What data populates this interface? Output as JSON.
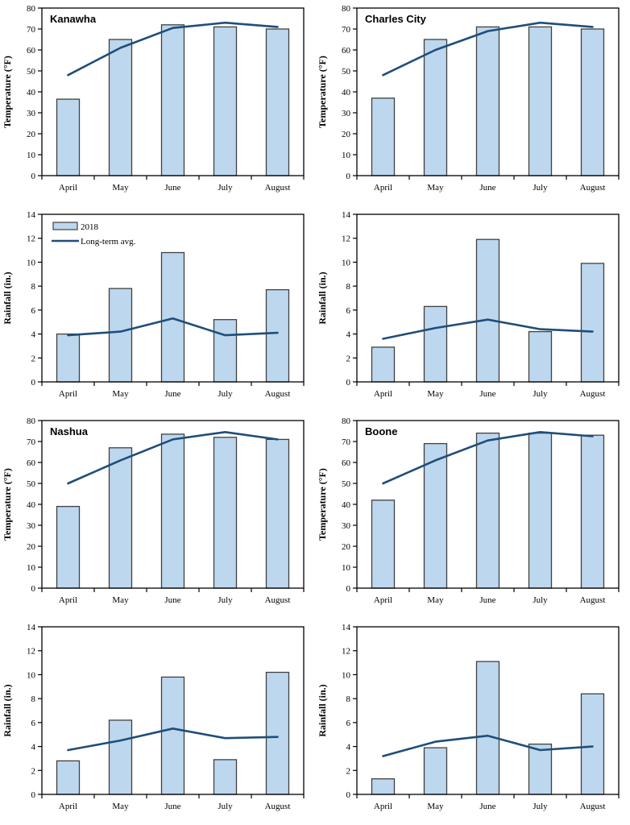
{
  "page": {
    "background": "#ffffff"
  },
  "colors": {
    "bar_fill": "#BDD7EE",
    "bar_border": "#404040",
    "line": "#1F4E79",
    "axis": "#000000"
  },
  "legend": {
    "bar_label": "2018",
    "line_label": "Long-term avg."
  },
  "categories": [
    "April",
    "May",
    "June",
    "July",
    "August"
  ],
  "chart_data": [
    {
      "id": "kanawha-temperature",
      "type": "bar",
      "title": "Kanawha",
      "xlabel": "",
      "ylabel": "Temperature (°F)",
      "ylim": [
        0,
        80
      ],
      "ytick": 10,
      "grid": false,
      "legend": false,
      "categories": [
        "April",
        "May",
        "June",
        "July",
        "August"
      ],
      "series": [
        {
          "name": "2018",
          "type": "bar",
          "values": [
            36.5,
            65,
            72,
            71,
            70
          ]
        },
        {
          "name": "Long-term avg.",
          "type": "line",
          "values": [
            48,
            61,
            70.5,
            73,
            71
          ]
        }
      ]
    },
    {
      "id": "charles-city-temperature",
      "type": "bar",
      "title": "Charles City",
      "xlabel": "",
      "ylabel": "Temperature (°F)",
      "ylim": [
        0,
        80
      ],
      "ytick": 10,
      "grid": false,
      "legend": false,
      "categories": [
        "April",
        "May",
        "June",
        "July",
        "August"
      ],
      "series": [
        {
          "name": "2018",
          "type": "bar",
          "values": [
            37,
            65,
            71,
            71,
            70
          ]
        },
        {
          "name": "Long-term avg.",
          "type": "line",
          "values": [
            48,
            60,
            69,
            73,
            71
          ]
        }
      ]
    },
    {
      "id": "kanawha-rainfall",
      "type": "bar",
      "title": "",
      "xlabel": "",
      "ylabel": "Rainfall (in.)",
      "ylim": [
        0,
        14
      ],
      "ytick": 2,
      "grid": false,
      "legend": true,
      "categories": [
        "April",
        "May",
        "June",
        "July",
        "August"
      ],
      "series": [
        {
          "name": "2018",
          "type": "bar",
          "values": [
            4.0,
            7.8,
            10.8,
            5.2,
            7.7
          ]
        },
        {
          "name": "Long-term avg.",
          "type": "line",
          "values": [
            3.9,
            4.2,
            5.3,
            3.9,
            4.1
          ]
        }
      ]
    },
    {
      "id": "charles-city-rainfall",
      "type": "bar",
      "title": "",
      "xlabel": "",
      "ylabel": "Rainfall (in.)",
      "ylim": [
        0,
        14
      ],
      "ytick": 2,
      "grid": false,
      "legend": false,
      "categories": [
        "April",
        "May",
        "June",
        "July",
        "August"
      ],
      "series": [
        {
          "name": "2018",
          "type": "bar",
          "values": [
            2.9,
            6.3,
            11.9,
            4.2,
            9.9
          ]
        },
        {
          "name": "Long-term avg.",
          "type": "line",
          "values": [
            3.6,
            4.5,
            5.2,
            4.4,
            4.2
          ]
        }
      ]
    },
    {
      "id": "nashua-temperature",
      "type": "bar",
      "title": "Nashua",
      "xlabel": "",
      "ylabel": "Temperature (°F)",
      "ylim": [
        0,
        80
      ],
      "ytick": 10,
      "grid": false,
      "legend": false,
      "categories": [
        "April",
        "May",
        "June",
        "July",
        "August"
      ],
      "series": [
        {
          "name": "2018",
          "type": "bar",
          "values": [
            39,
            67,
            73.5,
            72,
            71
          ]
        },
        {
          "name": "Long-term avg.",
          "type": "line",
          "values": [
            50,
            61,
            71,
            74.5,
            71
          ]
        }
      ]
    },
    {
      "id": "boone-temperature",
      "type": "bar",
      "title": "Boone",
      "xlabel": "",
      "ylabel": "Temperature (°F)",
      "ylim": [
        0,
        80
      ],
      "ytick": 10,
      "grid": false,
      "legend": false,
      "categories": [
        "April",
        "May",
        "June",
        "July",
        "August"
      ],
      "series": [
        {
          "name": "2018",
          "type": "bar",
          "values": [
            42,
            69,
            74,
            74,
            73
          ]
        },
        {
          "name": "Long-term avg.",
          "type": "line",
          "values": [
            50,
            61,
            70.5,
            74.5,
            72.5
          ]
        }
      ]
    },
    {
      "id": "nashua-rainfall",
      "type": "bar",
      "title": "",
      "xlabel": "",
      "ylabel": "Rainfall (in.)",
      "ylim": [
        0,
        14
      ],
      "ytick": 2,
      "grid": false,
      "legend": false,
      "categories": [
        "April",
        "May",
        "June",
        "July",
        "August"
      ],
      "series": [
        {
          "name": "2018",
          "type": "bar",
          "values": [
            2.8,
            6.2,
            9.8,
            2.9,
            10.2
          ]
        },
        {
          "name": "Long-term avg.",
          "type": "line",
          "values": [
            3.7,
            4.5,
            5.5,
            4.7,
            4.8
          ]
        }
      ]
    },
    {
      "id": "boone-rainfall",
      "type": "bar",
      "title": "",
      "xlabel": "",
      "ylabel": "Rainfall (in.)",
      "ylim": [
        0,
        14
      ],
      "ytick": 2,
      "grid": false,
      "legend": false,
      "categories": [
        "April",
        "May",
        "June",
        "July",
        "August"
      ],
      "series": [
        {
          "name": "2018",
          "type": "bar",
          "values": [
            1.3,
            3.9,
            11.1,
            4.2,
            8.4
          ]
        },
        {
          "name": "Long-term avg.",
          "type": "line",
          "values": [
            3.2,
            4.4,
            4.9,
            3.7,
            4.0
          ]
        }
      ]
    }
  ]
}
